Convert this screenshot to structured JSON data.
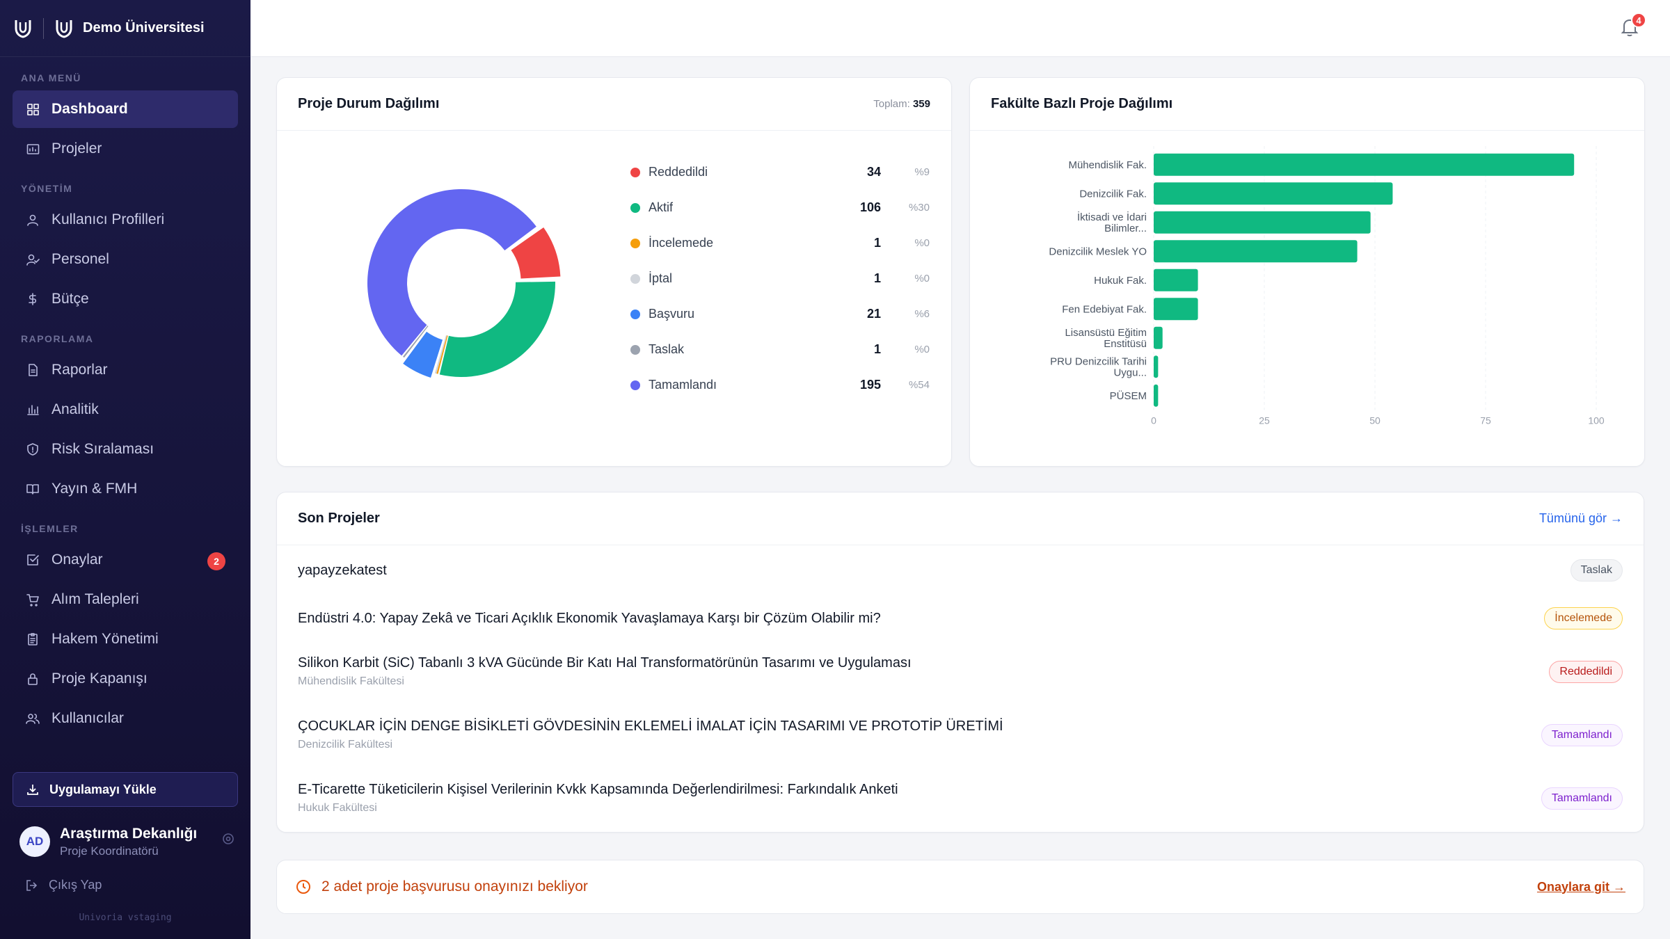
{
  "brand": {
    "name": "Demo Üniversitesi"
  },
  "sidebar": {
    "sections": [
      {
        "title": "ANA MENÜ",
        "items": [
          {
            "label": "Dashboard",
            "icon": "grid-icon",
            "active": true
          },
          {
            "label": "Projeler",
            "icon": "folder-chart-icon"
          }
        ]
      },
      {
        "title": "YÖNETİM",
        "items": [
          {
            "label": "Kullanıcı Profilleri",
            "icon": "user-icon"
          },
          {
            "label": "Personel",
            "icon": "user-check-icon"
          },
          {
            "label": "Bütçe",
            "icon": "dollar-icon"
          }
        ]
      },
      {
        "title": "RAPORLAMA",
        "items": [
          {
            "label": "Raporlar",
            "icon": "document-icon"
          },
          {
            "label": "Analitik",
            "icon": "bar-chart-icon"
          },
          {
            "label": "Risk Sıralaması",
            "icon": "shield-icon"
          },
          {
            "label": "Yayın & FMH",
            "icon": "book-icon"
          }
        ]
      },
      {
        "title": "İŞLEMLER",
        "items": [
          {
            "label": "Onaylar",
            "icon": "checkbox-icon",
            "badge": "2"
          },
          {
            "label": "Alım Talepleri",
            "icon": "cart-icon"
          },
          {
            "label": "Hakem Yönetimi",
            "icon": "clipboard-icon"
          },
          {
            "label": "Proje Kapanışı",
            "icon": "lock-icon"
          },
          {
            "label": "Kullanıcılar",
            "icon": "users-icon"
          }
        ]
      }
    ],
    "install_label": "Uygulamayı Yükle",
    "user": {
      "initials": "AD",
      "name": "Araştırma Dekanlığı",
      "role": "Proje Koordinatörü"
    },
    "logout_label": "Çıkış Yap",
    "version": "Univoria vstaging"
  },
  "topbar": {
    "notification_count": "4"
  },
  "status_card": {
    "title": "Proje Durum Dağılımı",
    "total_label": "Toplam:",
    "total_value": "359"
  },
  "faculty_card": {
    "title": "Fakülte Bazlı Proje Dağılımı"
  },
  "chart_data": [
    {
      "type": "pie",
      "title": "Proje Durum Dağılımı",
      "slices": [
        {
          "label": "Reddedildi",
          "value": 34,
          "pct": "%9",
          "color": "#ef4444"
        },
        {
          "label": "Aktif",
          "value": 106,
          "pct": "%30",
          "color": "#10b981"
        },
        {
          "label": "İncelemede",
          "value": 1,
          "pct": "%0",
          "color": "#f59e0b"
        },
        {
          "label": "İptal",
          "value": 1,
          "pct": "%0",
          "color": "#d1d5db"
        },
        {
          "label": "Başvuru",
          "value": 21,
          "pct": "%6",
          "color": "#3b82f6"
        },
        {
          "label": "Taslak",
          "value": 1,
          "pct": "%0",
          "color": "#9ca3af"
        },
        {
          "label": "Tamamlandı",
          "value": 195,
          "pct": "%54",
          "color": "#6366f1"
        }
      ]
    },
    {
      "type": "bar",
      "orientation": "horizontal",
      "title": "Fakülte Bazlı Proje Dağılımı",
      "categories": [
        [
          "Mühendislik Fak."
        ],
        [
          "Denizcilik Fak."
        ],
        [
          "İktisadi ve İdari",
          "Bilimler..."
        ],
        [
          "Denizcilik Meslek YO"
        ],
        [
          "Hukuk Fak."
        ],
        [
          "Fen Edebiyat Fak."
        ],
        [
          "Lisansüstü Eğitim",
          "Enstitüsü"
        ],
        [
          "PRU Denizcilik Tarihi",
          "Uygu..."
        ],
        [
          "PÜSEM"
        ]
      ],
      "values": [
        95,
        54,
        49,
        46,
        10,
        10,
        2,
        1,
        1
      ],
      "xlim": [
        0,
        100
      ],
      "xticks": [
        0,
        25,
        50,
        75,
        100
      ],
      "color": "#10b981"
    }
  ],
  "recent": {
    "title": "Son Projeler",
    "view_all": "Tümünü gör →",
    "rows": [
      {
        "title": "yapayzekatest",
        "subtitle": "",
        "status": "Taslak",
        "kind": "taslak"
      },
      {
        "title": "Endüstri 4.0: Yapay Zekâ ve Ticari Açıklık Ekonomik Yavaşlamaya Karşı bir Çözüm Olabilir mi?",
        "subtitle": "",
        "status": "İncelemede",
        "kind": "inceleme"
      },
      {
        "title": "Silikon Karbit (SiC) Tabanlı 3 kVA Gücünde Bir Katı Hal Transformatörünün Tasarımı ve Uygulaması",
        "subtitle": "Mühendislik Fakültesi",
        "status": "Reddedildi",
        "kind": "red"
      },
      {
        "title": "ÇOCUKLAR İÇİN DENGE BİSİKLETİ GÖVDESİNİN EKLEMELİ İMALAT İÇİN TASARIMI VE PROTOTİP ÜRETİMİ",
        "subtitle": "Denizcilik Fakültesi",
        "status": "Tamamlandı",
        "kind": "tamam"
      },
      {
        "title": "E-Ticarette Tüketicilerin Kişisel Verilerinin Kvkk Kapsamında Değerlendirilmesi: Farkındalık Anketi",
        "subtitle": "Hukuk Fakültesi",
        "status": "Tamamlandı",
        "kind": "tamam"
      }
    ]
  },
  "pending": {
    "text": "2 adet proje başvurusu onayınızı bekliyor",
    "link": "Onaylara git →"
  }
}
